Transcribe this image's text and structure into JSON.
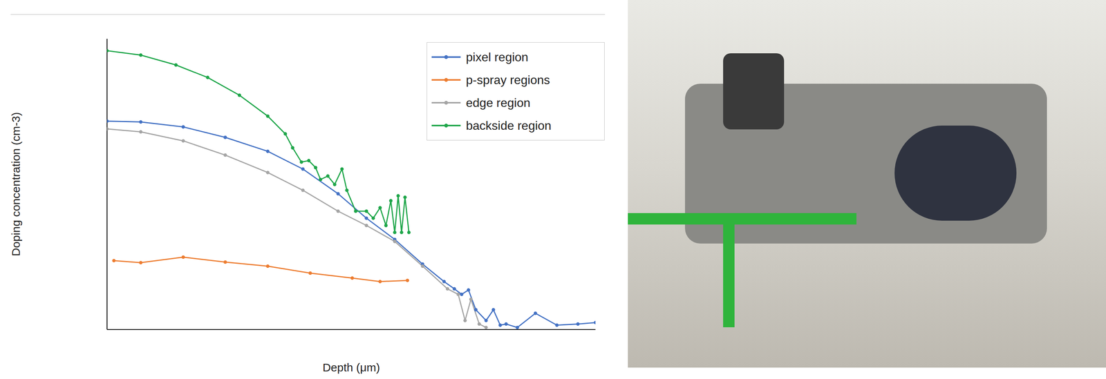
{
  "chart_data": {
    "type": "line",
    "x_label": "Depth (μm)",
    "y_label": "Doping concentration (cm-3)",
    "xlim": [
      0,
      100
    ],
    "ylim": [
      0,
      100
    ],
    "tick_labels": false,
    "legend": "upper right",
    "series": [
      {
        "name": "pixel region",
        "color": "#4472c4",
        "marker": "circle",
        "x": [
          0,
          6.9,
          15.6,
          24.2,
          32.9,
          40.1,
          47.3,
          53.1,
          58.9,
          64.6,
          69,
          71.1,
          72.6,
          74,
          75.5,
          77.6,
          79.1,
          80.5,
          81.7,
          84,
          87.7,
          92.1,
          96.4,
          100
        ],
        "values": [
          71.7,
          71.4,
          69.7,
          66.1,
          61.3,
          55.2,
          46.7,
          38.3,
          31,
          22.5,
          16.5,
          14,
          12.1,
          13.6,
          6.8,
          3.1,
          6.8,
          1.5,
          1.9,
          0.7,
          5.6,
          1.5,
          1.9,
          2.4
        ]
      },
      {
        "name": "p-spray regions",
        "color": "#ed7d31",
        "marker": "circle",
        "x": [
          1.4,
          6.9,
          15.6,
          24.2,
          32.9,
          41.6,
          50.2,
          55.9,
          61.5
        ],
        "values": [
          23.7,
          23,
          24.9,
          23.2,
          21.8,
          19.4,
          17.7,
          16.5,
          16.9
        ]
      },
      {
        "name": "edge region",
        "color": "#a5a5a5",
        "marker": "circle",
        "x": [
          0,
          6.9,
          15.6,
          24.2,
          32.9,
          40.1,
          47.3,
          53.1,
          58.9,
          64.6,
          69.7,
          71.9,
          73.3,
          74.5,
          76.2,
          77.6
        ],
        "values": [
          69,
          68,
          64.9,
          60,
          54,
          47.9,
          40.7,
          35.8,
          30.3,
          21.8,
          14,
          12.1,
          3.1,
          10.4,
          1.9,
          0.7
        ]
      },
      {
        "name": "backside region",
        "color": "#1fa64a",
        "marker": "circle",
        "x": [
          0,
          6.9,
          14.1,
          20.6,
          27.1,
          32.9,
          36.5,
          38,
          39.8,
          41.3,
          42.7,
          43.7,
          45.2,
          46.6,
          48.1,
          49.1,
          50.9,
          53.1,
          54.5,
          55.9,
          57.1,
          58.1,
          58.9,
          59.6,
          60.3,
          61,
          61.8
        ],
        "values": [
          95.9,
          94.4,
          91,
          86.7,
          80.6,
          73.4,
          67.3,
          62.5,
          57.6,
          58.1,
          55.7,
          51.6,
          52.8,
          49.9,
          55.2,
          47.9,
          40.7,
          40.7,
          38.3,
          41.9,
          35.8,
          44.3,
          33.4,
          46,
          33.4,
          45.5,
          33.4
        ]
      }
    ]
  }
}
